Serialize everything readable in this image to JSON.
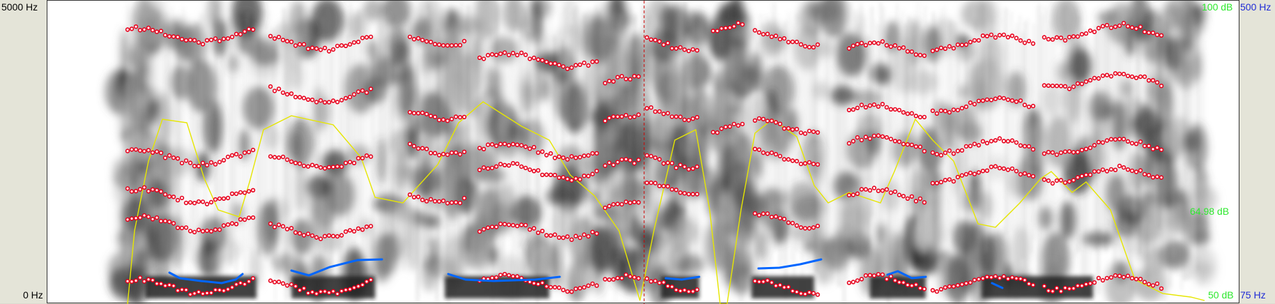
{
  "left_axis": {
    "top_label": "5000 Hz",
    "bottom_label": "0 Hz"
  },
  "intensity_axis": {
    "top_label": "100 dB",
    "middle_label": "64.98 dB",
    "bottom_label": "50 dB"
  },
  "pitch_axis": {
    "top_label": "500 Hz",
    "bottom_label": "75 Hz"
  },
  "colors": {
    "spectrogram_dark": "#1a1a1a",
    "formant": "#e8001c",
    "pitch": "#0066ff",
    "intensity": "#e6e600",
    "cursor": "#cc0000"
  }
}
